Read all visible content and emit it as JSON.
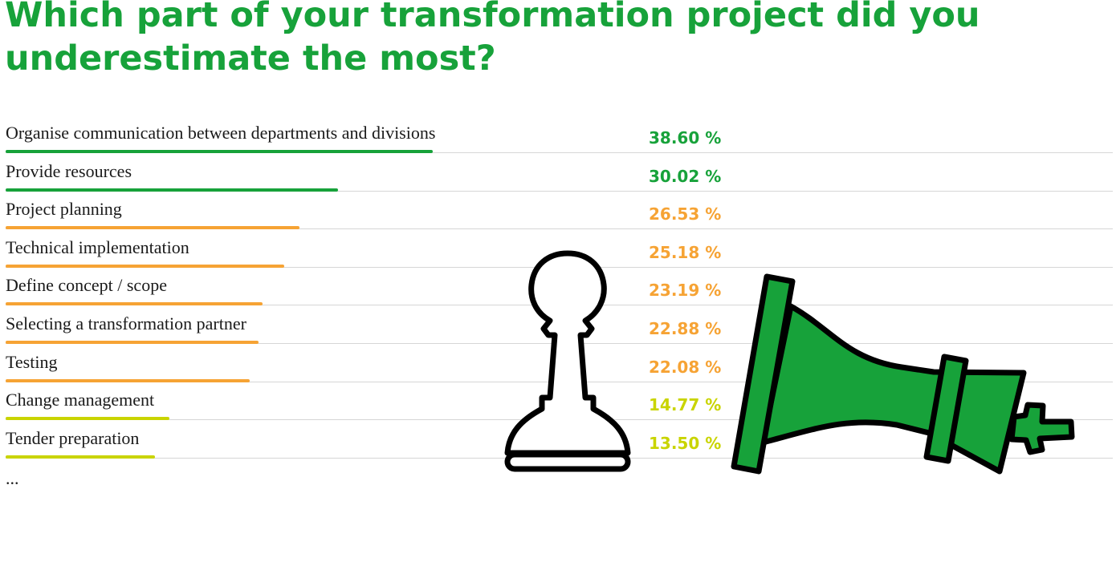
{
  "title": "Which part of your transformation project did you underestimate the most?",
  "ellipsis": "...",
  "icons": {
    "pawn": "white-pawn-standing-icon",
    "king": "green-king-fallen-icon"
  },
  "colors": {
    "title": "#17a23a",
    "high": "#17a23a",
    "mid": "#f6a334",
    "low": "#c9d400",
    "king_fill": "#17a23a",
    "outline": "#000000"
  },
  "chart_data": {
    "type": "bar",
    "orientation": "horizontal",
    "title": "Which part of your transformation project did you underestimate the most?",
    "categories": [
      "Organise communication between departments and divisions",
      "Provide resources",
      "Project planning",
      "Technical implementation",
      "Define concept / scope",
      "Selecting a transformation partner",
      "Testing",
      "Change management",
      "Tender preparation"
    ],
    "values": [
      38.6,
      30.02,
      26.53,
      25.18,
      23.19,
      22.88,
      22.08,
      14.77,
      13.5
    ],
    "value_labels": [
      "38.60 %",
      "30.02 %",
      "26.53 %",
      "25.18 %",
      "23.19 %",
      "22.88 %",
      "22.08 %",
      "14.77 %",
      "13.50 %"
    ],
    "value_colors": [
      "#17a23a",
      "#17a23a",
      "#f6a334",
      "#f6a334",
      "#f6a334",
      "#f6a334",
      "#f6a334",
      "#c9d400",
      "#c9d400"
    ],
    "unit": "%",
    "xlim": [
      0,
      100
    ]
  }
}
